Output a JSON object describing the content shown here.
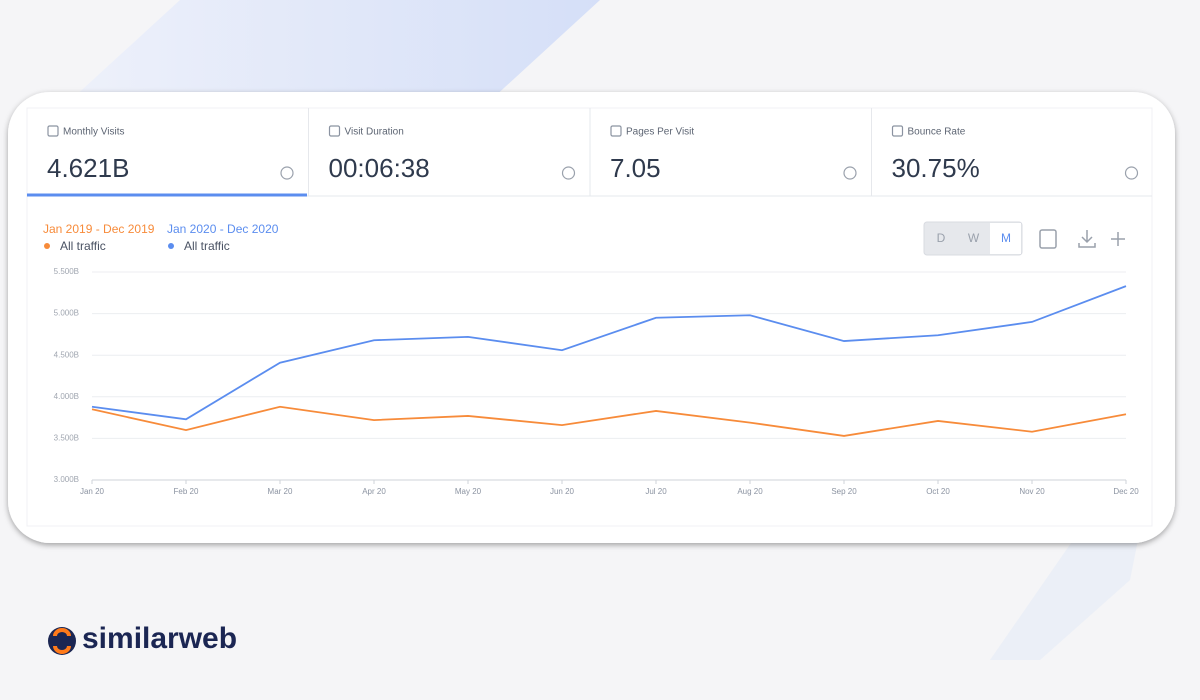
{
  "metrics": [
    {
      "label": "Monthly Visits",
      "value": "4.621B"
    },
    {
      "label": "Visit Duration",
      "value": "00:06:38"
    },
    {
      "label": "Pages Per Visit",
      "value": "7.05"
    },
    {
      "label": "Bounce Rate",
      "value": "30.75%"
    }
  ],
  "granularity_buttons": [
    "D",
    "W",
    "M"
  ],
  "brand": "similarweb",
  "chart_data": {
    "type": "line",
    "categories": [
      "Jan 20",
      "Feb 20",
      "Mar 20",
      "Apr 20",
      "May 20",
      "Jun 20",
      "Jul 20",
      "Aug 20",
      "Sep 20",
      "Oct 20",
      "Nov 20",
      "Dec 20"
    ],
    "series": [
      {
        "period": "Jan 2019 - Dec 2019",
        "name": "All traffic",
        "color": "#f78b3a",
        "values": [
          3.85,
          3.6,
          3.88,
          3.72,
          3.77,
          3.66,
          3.83,
          3.69,
          3.53,
          3.71,
          3.58,
          3.79
        ]
      },
      {
        "period": "Jan 2020 - Dec 2020",
        "name": "All traffic",
        "color": "#5b8def",
        "values": [
          3.88,
          3.73,
          4.41,
          4.68,
          4.72,
          4.56,
          4.95,
          4.98,
          4.67,
          4.74,
          4.9,
          5.33
        ]
      }
    ],
    "ylim": [
      3,
      5.5
    ],
    "yticks": [
      {
        "value": 3,
        "label": "3.000B"
      },
      {
        "value": 3.5,
        "label": "3.500B"
      },
      {
        "value": 4,
        "label": "4.000B"
      },
      {
        "value": 4.5,
        "label": "4.500B"
      },
      {
        "value": 5,
        "label": "5.000B"
      },
      {
        "value": 5.5,
        "label": "5.500B"
      }
    ],
    "grid": true
  }
}
